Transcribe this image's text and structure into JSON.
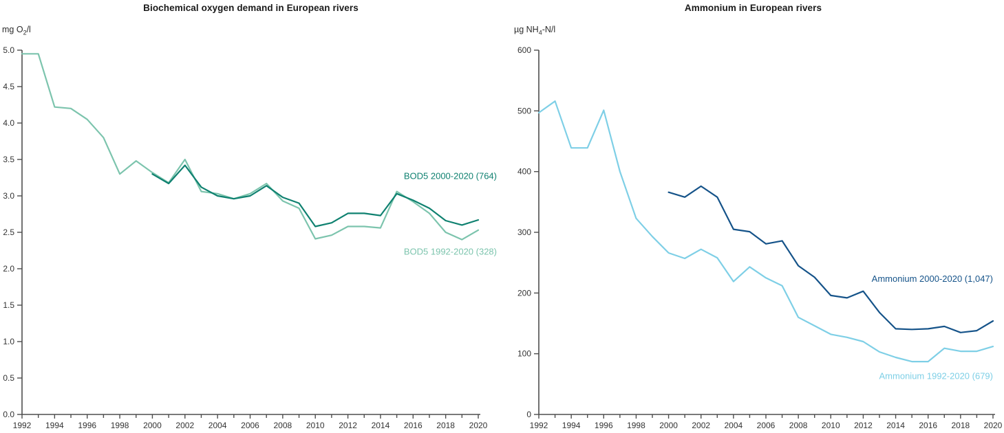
{
  "chart_data": [
    {
      "type": "line",
      "title": "Biochemical oxygen demand in European rivers",
      "ylabel": {
        "pre": "mg O",
        "sub": "2",
        "post": "/l"
      },
      "ylim": [
        0,
        5
      ],
      "ytick_step": 0.5,
      "ytick_decimals": 1,
      "xlim": [
        1992,
        2020
      ],
      "xtick_step": 1,
      "xlabel_step": 2,
      "grid": false,
      "legend_position": "annotated-on-plot",
      "series": [
        {
          "name": "BOD5 1992-2020 (328)",
          "color": "#7cc4ad",
          "start_x": 1992,
          "values": [
            4.95,
            4.95,
            4.22,
            4.2,
            4.05,
            3.8,
            3.3,
            3.48,
            3.32,
            3.18,
            3.5,
            3.06,
            3.03,
            2.96,
            3.03,
            3.17,
            2.93,
            2.83,
            2.41,
            2.46,
            2.58,
            2.58,
            2.56,
            3.06,
            2.92,
            2.76,
            2.5,
            2.4,
            2.53
          ]
        },
        {
          "name": "BOD5 2000-2020 (764)",
          "color": "#0f8170",
          "start_x": 2000,
          "values": [
            3.3,
            3.17,
            3.42,
            3.12,
            3.0,
            2.96,
            3.0,
            3.14,
            2.98,
            2.9,
            2.58,
            2.63,
            2.76,
            2.76,
            2.73,
            3.03,
            2.94,
            2.83,
            2.66,
            2.6,
            2.67
          ]
        }
      ],
      "annotations": [
        {
          "text": "BOD5 2000-2020 (764)",
          "y_value": 3.27,
          "color": "#0f8170",
          "x_offset": 27
        },
        {
          "text": "BOD5 1992-2020 (328)",
          "y_value": 2.23,
          "color": "#7cc4ad",
          "x_offset": 27
        }
      ]
    },
    {
      "type": "line",
      "title": "Ammonium in European rivers",
      "ylabel": {
        "pre": "µg NH",
        "sub": "4",
        "post": "-N/l"
      },
      "ylim": [
        0,
        600
      ],
      "ytick_step": 100,
      "ytick_decimals": 0,
      "xlim": [
        1992,
        2020
      ],
      "xtick_step": 1,
      "xlabel_step": 2,
      "grid": false,
      "legend_position": "annotated-on-plot",
      "series": [
        {
          "name": "Ammonium 1992-2020 (679)",
          "color": "#7ecfe6",
          "start_x": 1992,
          "values": [
            497,
            516,
            439,
            439,
            501,
            400,
            323,
            293,
            266,
            257,
            272,
            258,
            219,
            243,
            225,
            212,
            160,
            146,
            132,
            127,
            120,
            103,
            94,
            87,
            87,
            109,
            104,
            104,
            112
          ]
        },
        {
          "name": "Ammonium 2000-2020 (1,047)",
          "color": "#155389",
          "start_x": 2000,
          "values": [
            366,
            358,
            376,
            358,
            305,
            301,
            281,
            286,
            245,
            226,
            196,
            192,
            203,
            168,
            141,
            140,
            141,
            145,
            135,
            138,
            154
          ]
        }
      ],
      "annotations": [
        {
          "text": "Ammonium 2000-2020 (1,047)",
          "y_value": 223,
          "color": "#155389",
          "x_offset": 0
        },
        {
          "text": "Ammonium 1992-2020 (679)",
          "y_value": 63,
          "color": "#7ecfe6",
          "x_offset": 0
        }
      ]
    }
  ],
  "style": {
    "axis_color": "#4d4d4d",
    "tick_label_color": "#333333",
    "title_color": "#1a1a1a",
    "line_width": 2.2,
    "annotation_font_size": 13,
    "tick_font_size": 12
  }
}
